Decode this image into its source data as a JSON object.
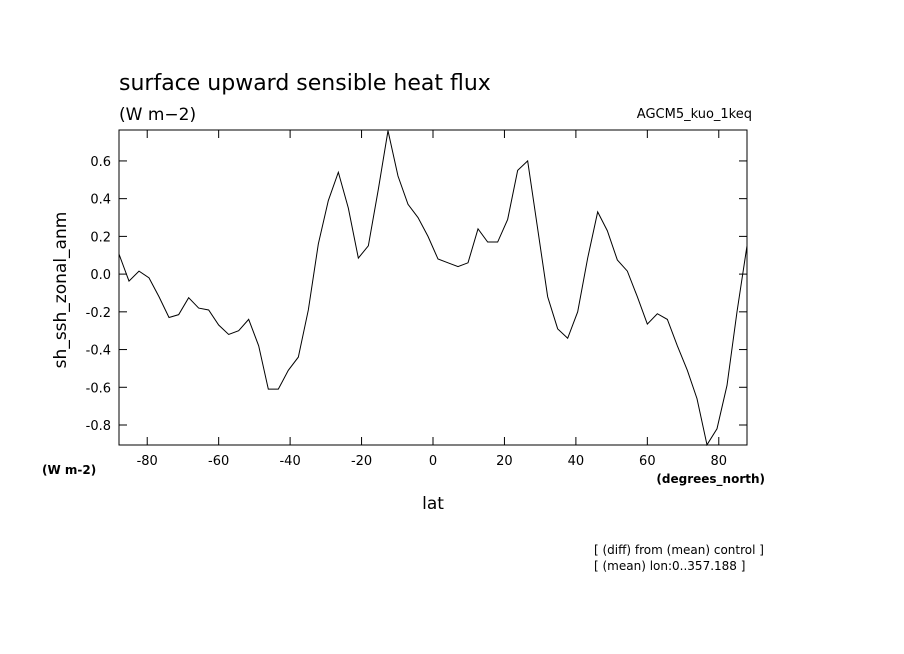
{
  "chart_data": {
    "type": "line",
    "title": "surface upward sensible heat flux",
    "subtitle": "(W m−2)",
    "experiment": "AGCM5_kuo_1keq",
    "ylabel": "sh_ssh_zonal_anm",
    "yunits": "(W m-2)",
    "xlabel": "lat",
    "xunits": "(degrees_north)",
    "notes": [
      "[ (diff) from (mean) control ]",
      "[ (mean) lon:0..357.188 ]"
    ],
    "x": [
      -87.9,
      -85.1,
      -82.3,
      -79.5,
      -76.7,
      -73.9,
      -71.2,
      -68.4,
      -65.6,
      -62.8,
      -60.0,
      -57.2,
      -54.4,
      -51.6,
      -48.8,
      -46.1,
      -43.3,
      -40.5,
      -37.7,
      -34.9,
      -32.1,
      -29.3,
      -26.5,
      -23.7,
      -20.9,
      -18.1,
      -15.3,
      -12.6,
      -9.8,
      -7.0,
      -4.2,
      -1.4,
      1.4,
      4.2,
      7.0,
      9.8,
      12.6,
      15.3,
      18.1,
      20.9,
      23.7,
      26.5,
      29.3,
      32.1,
      34.9,
      37.7,
      40.5,
      43.3,
      46.1,
      48.8,
      51.6,
      54.4,
      57.2,
      60.0,
      62.8,
      65.6,
      68.4,
      71.2,
      73.9,
      76.7,
      79.5,
      82.3,
      85.1,
      87.9
    ],
    "series": [
      {
        "name": "sh_ssh_zonal_anm",
        "color": "#000000",
        "values": [
          0.106,
          -0.037,
          0.016,
          -0.02,
          -0.12,
          -0.23,
          -0.215,
          -0.125,
          -0.18,
          -0.19,
          -0.27,
          -0.32,
          -0.3,
          -0.24,
          -0.38,
          -0.61,
          -0.61,
          -0.51,
          -0.44,
          -0.19,
          0.16,
          0.39,
          0.54,
          0.35,
          0.085,
          0.15,
          0.45,
          0.76,
          0.52,
          0.37,
          0.3,
          0.2,
          0.08,
          0.06,
          0.04,
          0.06,
          0.24,
          0.17,
          0.17,
          0.29,
          0.55,
          0.6,
          0.24,
          -0.12,
          -0.29,
          -0.34,
          -0.2,
          0.085,
          0.33,
          0.23,
          0.075,
          0.016,
          -0.12,
          -0.265,
          -0.21,
          -0.24,
          -0.38,
          -0.51,
          -0.66,
          -0.905,
          -0.82,
          -0.59,
          -0.2,
          0.15
        ]
      }
    ],
    "xlim": [
      -87.9,
      87.9
    ],
    "ylim": [
      -0.906,
      0.764
    ],
    "xticks": [
      -80,
      -60,
      -40,
      -20,
      0,
      20,
      40,
      60,
      80
    ],
    "yticks": [
      -0.8,
      -0.6,
      -0.4,
      -0.2,
      {
        "value": 0,
        "label": "0.0"
      },
      0.2,
      0.4,
      0.6
    ]
  }
}
